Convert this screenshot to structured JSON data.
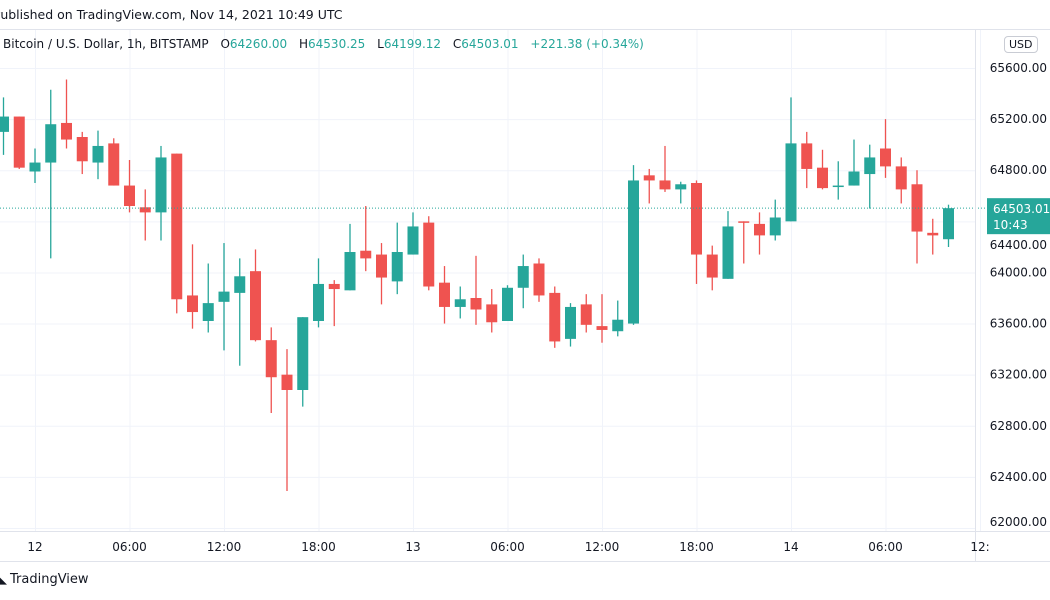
{
  "header": {
    "published": "Published on TradingView.com, Nov 14, 2021 10:49 UTC",
    "symbol": "Bitcoin / U.S. Dollar, 1h, BITSTAMP",
    "o_label": "O",
    "o_value": "64260.00",
    "h_label": "H",
    "h_value": "64530.25",
    "l_label": "L",
    "l_value": "64199.12",
    "c_label": "C",
    "c_value": "64503.01",
    "change": "+221.38 (+0.34%)"
  },
  "price_axis": {
    "currency": "USD",
    "current_price": "64503.01",
    "countdown": "10:43"
  },
  "footer": {
    "brand": "TradingView",
    "logo": "TV"
  },
  "colors": {
    "up": "#26a69a",
    "down": "#ef5350",
    "grid": "#f0f3fa",
    "text": "#131722"
  },
  "chart_data": {
    "type": "candlestick",
    "title": "Bitcoin / U.S. Dollar, 1h, BITSTAMP",
    "x_start": "2021-11-11 22:00 UTC",
    "interval": "1h",
    "ylim": [
      62000,
      65600
    ],
    "yticks": [
      "65600.00",
      "65200.00",
      "64800.00",
      "64400.00",
      "64000.00",
      "63600.00",
      "63200.00",
      "62800.00",
      "62400.00",
      "62000.00"
    ],
    "xticks": [
      {
        "hour": 0,
        "label": "12"
      },
      {
        "hour": 6,
        "label": "06:00"
      },
      {
        "hour": 12,
        "label": "12:00"
      },
      {
        "hour": 18,
        "label": "18:00"
      },
      {
        "hour": 24,
        "label": "13"
      },
      {
        "hour": 30,
        "label": "06:00"
      },
      {
        "hour": 36,
        "label": "12:00"
      },
      {
        "hour": 42,
        "label": "18:00"
      },
      {
        "hour": 48,
        "label": "14"
      },
      {
        "hour": 54,
        "label": "06:00"
      },
      {
        "hour": 60,
        "label": "12:"
      }
    ],
    "current_price": 64503.01,
    "grid": true,
    "candles_ohlc": [
      [
        65100,
        65370,
        64920,
        65220
      ],
      [
        65220,
        65220,
        64810,
        64820
      ],
      [
        64790,
        64970,
        64700,
        64860
      ],
      [
        64860,
        65430,
        64110,
        65160
      ],
      [
        65170,
        65510,
        64970,
        65040
      ],
      [
        65060,
        65100,
        64770,
        64870
      ],
      [
        64860,
        65110,
        64730,
        64990
      ],
      [
        65010,
        65050,
        64680,
        64680
      ],
      [
        64680,
        64880,
        64470,
        64520
      ],
      [
        64510,
        64650,
        64250,
        64470
      ],
      [
        64470,
        64990,
        64250,
        64900
      ],
      [
        64930,
        64930,
        63680,
        63790
      ],
      [
        63820,
        64220,
        63560,
        63690
      ],
      [
        63620,
        64070,
        63530,
        63760
      ],
      [
        63770,
        64230,
        63390,
        63850
      ],
      [
        63840,
        64110,
        63270,
        63970
      ],
      [
        64010,
        64180,
        63460,
        63470
      ],
      [
        63470,
        63570,
        62900,
        63180
      ],
      [
        63200,
        63400,
        62290,
        63080
      ],
      [
        63080,
        63650,
        62950,
        63650
      ],
      [
        63620,
        64110,
        63570,
        63910
      ],
      [
        63910,
        63940,
        63580,
        63870
      ],
      [
        63860,
        64380,
        63860,
        64160
      ],
      [
        64170,
        64520,
        64010,
        64110
      ],
      [
        64140,
        64230,
        63750,
        63960
      ],
      [
        63930,
        64390,
        63830,
        64160
      ],
      [
        64140,
        64470,
        64140,
        64360
      ],
      [
        64390,
        64440,
        63860,
        63890
      ],
      [
        63920,
        64050,
        63600,
        63730
      ],
      [
        63730,
        63890,
        63640,
        63790
      ],
      [
        63800,
        64130,
        63590,
        63710
      ],
      [
        63750,
        63870,
        63530,
        63610
      ],
      [
        63620,
        63900,
        63620,
        63880
      ],
      [
        63880,
        64140,
        63720,
        64050
      ],
      [
        64070,
        64110,
        63770,
        63820
      ],
      [
        63840,
        63890,
        63410,
        63460
      ],
      [
        63480,
        63760,
        63420,
        63730
      ],
      [
        63750,
        63830,
        63530,
        63590
      ],
      [
        63580,
        63830,
        63450,
        63550
      ],
      [
        63540,
        63780,
        63500,
        63630
      ],
      [
        63600,
        64840,
        63590,
        64720
      ],
      [
        64760,
        64810,
        64540,
        64720
      ],
      [
        64720,
        64990,
        64630,
        64650
      ],
      [
        64650,
        64710,
        64540,
        64690
      ],
      [
        64700,
        64720,
        63910,
        64140
      ],
      [
        64140,
        64210,
        63860,
        63960
      ],
      [
        63950,
        64480,
        63950,
        64360
      ],
      [
        64400,
        64400,
        64070,
        64390
      ],
      [
        64380,
        64470,
        64140,
        64290
      ],
      [
        64290,
        64570,
        64250,
        64430
      ],
      [
        64400,
        65370,
        64400,
        65010
      ],
      [
        65010,
        65100,
        64660,
        64810
      ],
      [
        64820,
        64960,
        64650,
        64660
      ],
      [
        64670,
        64870,
        64570,
        64680
      ],
      [
        64680,
        65040,
        64680,
        64790
      ],
      [
        64770,
        65000,
        64500,
        64900
      ],
      [
        64970,
        65200,
        64740,
        64830
      ],
      [
        64830,
        64900,
        64540,
        64650
      ],
      [
        64690,
        64800,
        64070,
        64320
      ],
      [
        64310,
        64420,
        64140,
        64290
      ],
      [
        64260,
        64530.25,
        64199.12,
        64503.01
      ]
    ],
    "first_candle_hour": -2
  }
}
